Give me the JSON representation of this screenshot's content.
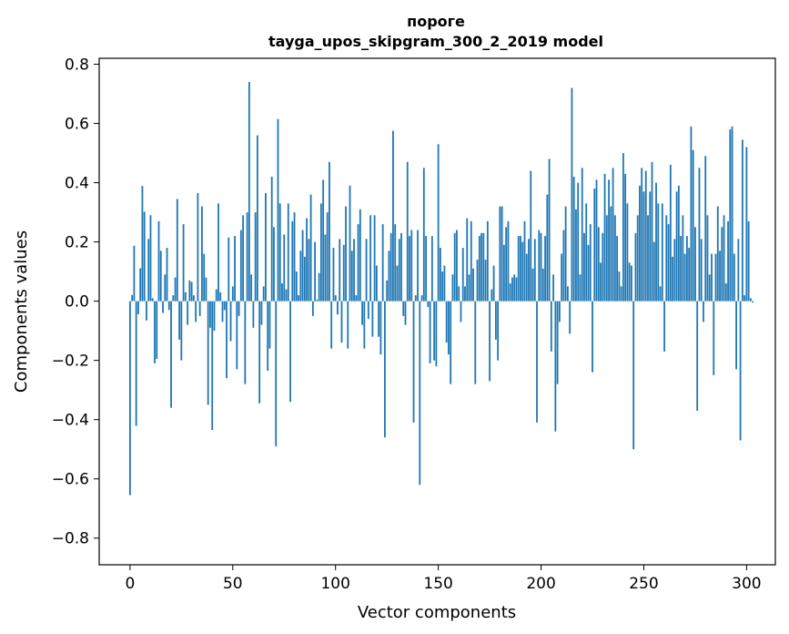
{
  "chart_data": {
    "type": "bar",
    "title_line1": "пороге",
    "title_line2": "tayga_upos_skipgram_300_2_2019 model",
    "xlabel": "Vector components",
    "ylabel": "Components values",
    "xlim": [
      -15,
      314
    ],
    "ylim": [
      -0.89,
      0.82
    ],
    "xticks": [
      0,
      50,
      100,
      150,
      200,
      250,
      300
    ],
    "xtick_labels": [
      "0",
      "50",
      "100",
      "150",
      "200",
      "250",
      "300"
    ],
    "yticks": [
      0.8,
      0.6,
      0.4,
      0.2,
      0.0,
      -0.2,
      -0.4,
      -0.6,
      -0.8
    ],
    "ytick_labels": [
      "0.8",
      "0.6",
      "0.4",
      "0.2",
      "0.0",
      "−0.2",
      "−0.4",
      "−0.6",
      "−0.8"
    ],
    "bar_color": "#1f77b4",
    "values": [
      -0.655,
      0.021,
      0.187,
      -0.421,
      -0.044,
      0.111,
      0.389,
      0.302,
      -0.065,
      0.21,
      0.29,
      0.01,
      -0.21,
      -0.195,
      0.27,
      0.17,
      -0.04,
      0.09,
      0.18,
      -0.03,
      -0.36,
      0.02,
      0.08,
      0.345,
      -0.13,
      -0.2,
      0.26,
      0.03,
      -0.08,
      0.07,
      0.065,
      0.02,
      -0.07,
      0.365,
      -0.05,
      0.32,
      0.16,
      0.08,
      -0.35,
      -0.09,
      -0.435,
      -0.1,
      0.04,
      0.33,
      0.03,
      -0.07,
      -0.03,
      -0.26,
      0.215,
      -0.135,
      0.05,
      0.22,
      -0.23,
      -0.05,
      0.24,
      0.29,
      -0.28,
      0.3,
      0.74,
      0.09,
      -0.09,
      0.3,
      0.56,
      -0.345,
      -0.08,
      0.05,
      0.365,
      -0.235,
      -0.16,
      0.42,
      0.25,
      -0.49,
      0.615,
      0.33,
      0.06,
      0.225,
      0.04,
      0.33,
      -0.34,
      0.27,
      0.3,
      0.1,
      0.02,
      0.17,
      0.24,
      0.15,
      0.28,
      0.21,
      0.36,
      -0.05,
      0.2,
      0.005,
      0.095,
      0.33,
      0.41,
      0.225,
      0.3,
      0.47,
      -0.16,
      0.18,
      0.02,
      -0.045,
      0.21,
      -0.14,
      0.19,
      0.32,
      -0.16,
      0.39,
      0.17,
      0.21,
      0.02,
      0.26,
      0.31,
      -0.08,
      -0.16,
      0.21,
      -0.06,
      0.29,
      -0.12,
      0.29,
      0.12,
      -0.12,
      -0.18,
      0.26,
      -0.46,
      0.07,
      0.17,
      0.23,
      0.575,
      0.26,
      0.12,
      0.21,
      0.23,
      -0.05,
      -0.08,
      0.47,
      0.22,
      0.24,
      -0.41,
      0.02,
      0.24,
      -0.62,
      0.02,
      0.45,
      0.22,
      -0.02,
      -0.21,
      0.22,
      -0.2,
      -0.22,
      0.53,
      0.18,
      0.1,
      0.12,
      -0.14,
      -0.18,
      -0.28,
      0.09,
      0.23,
      0.24,
      0.05,
      -0.07,
      0.18,
      0.05,
      0.28,
      0.09,
      0.27,
      0.11,
      -0.28,
      0.14,
      0.22,
      0.23,
      0.23,
      0.14,
      0.27,
      -0.27,
      0.04,
      0.12,
      -0.13,
      -0.2,
      0.32,
      0.32,
      0.19,
      0.25,
      0.27,
      0.06,
      0.08,
      0.09,
      0.08,
      0.22,
      0.22,
      0.2,
      0.27,
      0.16,
      0.21,
      0.44,
      0.11,
      0.21,
      -0.41,
      0.24,
      0.23,
      0.11,
      0.22,
      0.36,
      0.48,
      -0.17,
      0.09,
      -0.44,
      -0.28,
      -0.07,
      0.16,
      0.24,
      0.32,
      0.05,
      -0.11,
      0.72,
      0.42,
      0.31,
      0.4,
      0.09,
      0.45,
      0.23,
      0.33,
      0.19,
      0.26,
      -0.24,
      0.38,
      0.41,
      0.25,
      0.13,
      0.23,
      0.43,
      0.29,
      0.41,
      0.32,
      0.45,
      0.29,
      0.22,
      0.1,
      0.05,
      0.5,
      0.43,
      0.33,
      0.13,
      0.12,
      -0.5,
      0.23,
      0.29,
      0.39,
      0.45,
      0.37,
      0.44,
      0.29,
      0.37,
      0.47,
      0.2,
      0.4,
      0.33,
      0.05,
      0.33,
      -0.17,
      0.29,
      0.26,
      0.46,
      0.15,
      0.21,
      0.37,
      0.39,
      0.22,
      0.29,
      0.16,
      0.22,
      0.18,
      0.59,
      0.51,
      0.25,
      -0.37,
      0.45,
      0.21,
      -0.07,
      0.49,
      0.29,
      0.09,
      0.16,
      -0.25,
      0.16,
      0.32,
      0.17,
      0.25,
      0.29,
      0.06,
      0.27,
      0.58,
      0.59,
      0.16,
      -0.23,
      0.21,
      -0.47,
      0.545,
      0.02,
      0.52,
      0.27,
      0.01,
      -0.005
    ]
  }
}
